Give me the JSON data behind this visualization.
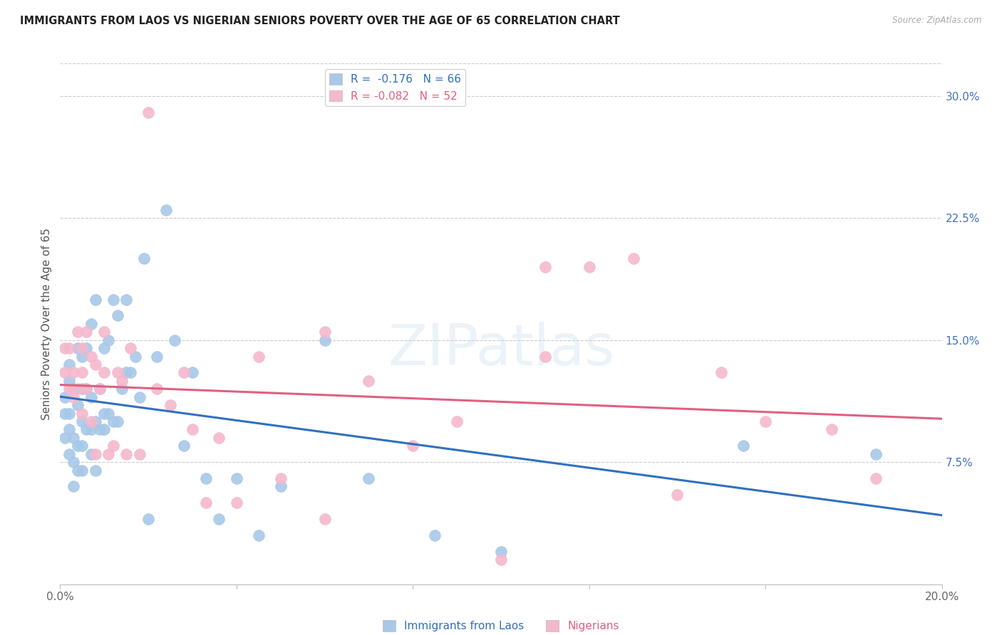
{
  "title": "IMMIGRANTS FROM LAOS VS NIGERIAN SENIORS POVERTY OVER THE AGE OF 65 CORRELATION CHART",
  "source": "Source: ZipAtlas.com",
  "ylabel": "Seniors Poverty Over the Age of 65",
  "xlim": [
    0.0,
    0.2
  ],
  "ylim": [
    0.0,
    0.32
  ],
  "xtick_pos": [
    0.0,
    0.04,
    0.08,
    0.12,
    0.16,
    0.2
  ],
  "xtick_labels": [
    "0.0%",
    "",
    "",
    "",
    "",
    "20.0%"
  ],
  "ytick_right": [
    0.075,
    0.15,
    0.225,
    0.3
  ],
  "ytick_right_labels": [
    "7.5%",
    "15.0%",
    "22.5%",
    "30.0%"
  ],
  "legend_labels": [
    "Immigrants from Laos",
    "Nigerians"
  ],
  "laos_R": "-0.176",
  "laos_N": "66",
  "nigeria_R": "-0.082",
  "nigeria_N": "52",
  "laos_color": "#a8c8e8",
  "nigeria_color": "#f4b8cc",
  "laos_line_color": "#3070c0",
  "nigeria_line_color": "#e06080",
  "background_color": "#ffffff",
  "watermark": "ZIPatlas",
  "laos_x": [
    0.001,
    0.001,
    0.001,
    0.002,
    0.002,
    0.002,
    0.002,
    0.002,
    0.003,
    0.003,
    0.003,
    0.003,
    0.004,
    0.004,
    0.004,
    0.004,
    0.005,
    0.005,
    0.005,
    0.005,
    0.005,
    0.006,
    0.006,
    0.006,
    0.007,
    0.007,
    0.007,
    0.007,
    0.008,
    0.008,
    0.008,
    0.009,
    0.009,
    0.01,
    0.01,
    0.01,
    0.011,
    0.011,
    0.012,
    0.012,
    0.013,
    0.013,
    0.014,
    0.015,
    0.015,
    0.016,
    0.017,
    0.018,
    0.019,
    0.02,
    0.022,
    0.024,
    0.026,
    0.028,
    0.03,
    0.033,
    0.036,
    0.04,
    0.045,
    0.05,
    0.06,
    0.07,
    0.085,
    0.1,
    0.155,
    0.185
  ],
  "laos_y": [
    0.09,
    0.105,
    0.115,
    0.08,
    0.095,
    0.105,
    0.125,
    0.135,
    0.06,
    0.075,
    0.09,
    0.12,
    0.07,
    0.085,
    0.11,
    0.145,
    0.07,
    0.085,
    0.1,
    0.12,
    0.14,
    0.095,
    0.12,
    0.145,
    0.08,
    0.095,
    0.115,
    0.16,
    0.07,
    0.1,
    0.175,
    0.095,
    0.12,
    0.095,
    0.105,
    0.145,
    0.105,
    0.15,
    0.1,
    0.175,
    0.1,
    0.165,
    0.12,
    0.13,
    0.175,
    0.13,
    0.14,
    0.115,
    0.2,
    0.04,
    0.14,
    0.23,
    0.15,
    0.085,
    0.13,
    0.065,
    0.04,
    0.065,
    0.03,
    0.06,
    0.15,
    0.065,
    0.03,
    0.02,
    0.085,
    0.08
  ],
  "nigeria_x": [
    0.001,
    0.001,
    0.002,
    0.002,
    0.003,
    0.003,
    0.004,
    0.004,
    0.005,
    0.005,
    0.005,
    0.006,
    0.006,
    0.007,
    0.007,
    0.008,
    0.008,
    0.009,
    0.01,
    0.01,
    0.011,
    0.012,
    0.013,
    0.014,
    0.015,
    0.016,
    0.018,
    0.02,
    0.022,
    0.025,
    0.028,
    0.03,
    0.033,
    0.036,
    0.04,
    0.045,
    0.05,
    0.06,
    0.07,
    0.08,
    0.09,
    0.1,
    0.11,
    0.12,
    0.13,
    0.14,
    0.15,
    0.16,
    0.175,
    0.185,
    0.06,
    0.11
  ],
  "nigeria_y": [
    0.13,
    0.145,
    0.12,
    0.145,
    0.115,
    0.13,
    0.12,
    0.155,
    0.105,
    0.13,
    0.145,
    0.12,
    0.155,
    0.1,
    0.14,
    0.08,
    0.135,
    0.12,
    0.13,
    0.155,
    0.08,
    0.085,
    0.13,
    0.125,
    0.08,
    0.145,
    0.08,
    0.29,
    0.12,
    0.11,
    0.13,
    0.095,
    0.05,
    0.09,
    0.05,
    0.14,
    0.065,
    0.155,
    0.125,
    0.085,
    0.1,
    0.015,
    0.14,
    0.195,
    0.2,
    0.055,
    0.13,
    0.1,
    0.095,
    0.065,
    0.04,
    0.195
  ]
}
